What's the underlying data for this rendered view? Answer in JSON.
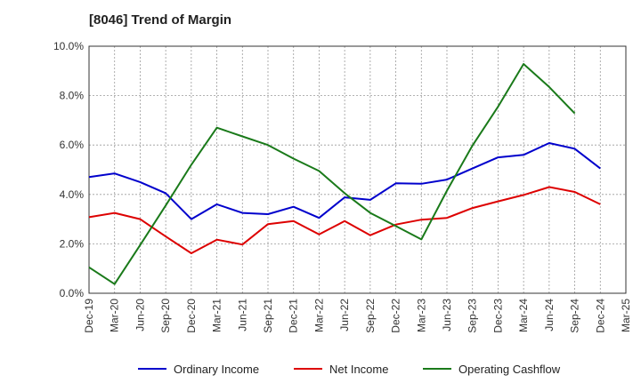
{
  "chart_data": {
    "type": "line",
    "title": "[8046]  Trend of Margin",
    "xlabel": "",
    "ylabel": "",
    "ylim": [
      0,
      10
    ],
    "y_ticks": [
      0,
      2,
      4,
      6,
      8,
      10
    ],
    "y_tick_format": "{v}.0%",
    "grid": true,
    "legend_position": "bottom",
    "categories": [
      "Dec-19",
      "Mar-20",
      "Jun-20",
      "Sep-20",
      "Dec-20",
      "Mar-21",
      "Jun-21",
      "Sep-21",
      "Dec-21",
      "Mar-22",
      "Jun-22",
      "Sep-22",
      "Dec-22",
      "Mar-23",
      "Jun-23",
      "Sep-23",
      "Dec-23",
      "Mar-24",
      "Jun-24",
      "Sep-24",
      "Dec-24",
      "Mar-25"
    ],
    "series": [
      {
        "name": "Ordinary Income",
        "color": "#0000cc",
        "values": [
          4.7,
          4.85,
          4.5,
          4.05,
          3.0,
          3.6,
          3.25,
          3.2,
          3.5,
          3.05,
          3.88,
          3.78,
          4.45,
          4.43,
          4.6,
          5.05,
          5.5,
          5.6,
          6.08,
          5.85,
          5.05,
          null
        ]
      },
      {
        "name": "Net Income",
        "color": "#dd0000",
        "values": [
          3.08,
          3.25,
          3.0,
          2.3,
          1.62,
          2.17,
          1.97,
          2.8,
          2.92,
          2.38,
          2.92,
          2.35,
          2.78,
          2.98,
          3.05,
          3.45,
          3.72,
          3.98,
          4.3,
          4.1,
          3.6,
          null
        ]
      },
      {
        "name": "Operating Cashflow",
        "color": "#1a7a1a",
        "values": [
          1.05,
          0.37,
          1.95,
          3.55,
          5.2,
          6.7,
          6.35,
          6.0,
          5.45,
          4.95,
          4.05,
          3.25,
          2.72,
          2.18,
          4.15,
          5.98,
          7.55,
          9.28,
          8.35,
          7.28,
          null,
          null
        ]
      }
    ]
  }
}
